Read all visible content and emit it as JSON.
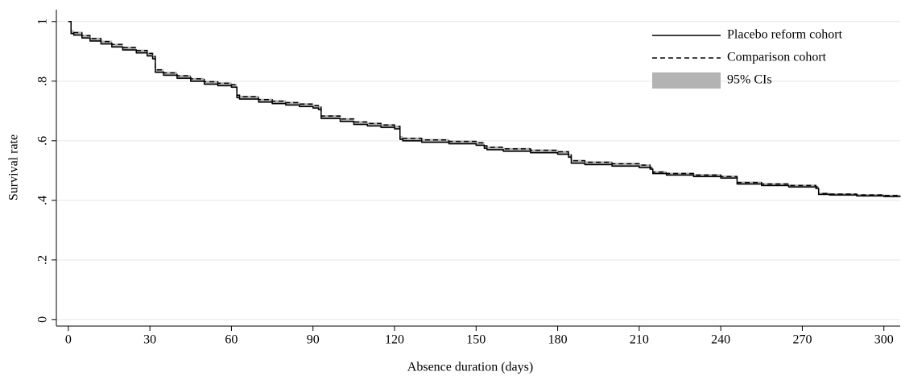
{
  "chart_data": {
    "type": "survival",
    "x_label": "Absence duration (days)",
    "y_label": "Survival rate",
    "x": [
      0,
      1,
      2,
      5,
      8,
      12,
      16,
      20,
      25,
      29,
      31,
      32,
      35,
      40,
      45,
      50,
      55,
      60,
      62,
      63,
      70,
      75,
      80,
      85,
      90,
      92,
      93,
      100,
      105,
      110,
      115,
      120,
      122,
      123,
      130,
      140,
      150,
      153,
      154,
      160,
      170,
      180,
      184,
      185,
      190,
      200,
      210,
      214,
      215,
      220,
      230,
      240,
      245,
      246,
      255,
      265,
      275,
      276,
      280,
      290,
      300,
      306
    ],
    "series": [
      {
        "name": "Placebo reform cohort",
        "color": "#000000",
        "dash": false,
        "values": [
          1,
          0.96,
          0.955,
          0.945,
          0.935,
          0.925,
          0.915,
          0.905,
          0.895,
          0.885,
          0.875,
          0.83,
          0.82,
          0.81,
          0.8,
          0.79,
          0.785,
          0.78,
          0.745,
          0.74,
          0.73,
          0.725,
          0.72,
          0.715,
          0.71,
          0.705,
          0.675,
          0.665,
          0.655,
          0.65,
          0.645,
          0.64,
          0.605,
          0.6,
          0.595,
          0.59,
          0.585,
          0.575,
          0.57,
          0.565,
          0.56,
          0.555,
          0.545,
          0.525,
          0.52,
          0.515,
          0.51,
          0.505,
          0.49,
          0.485,
          0.48,
          0.475,
          0.475,
          0.455,
          0.45,
          0.445,
          0.44,
          0.42,
          0.418,
          0.415,
          0.413,
          0.412
        ]
      },
      {
        "name": "Comparison cohort",
        "color": "#000000",
        "dash": true,
        "values": [
          1,
          0.968,
          0.963,
          0.953,
          0.943,
          0.933,
          0.923,
          0.913,
          0.903,
          0.893,
          0.883,
          0.838,
          0.828,
          0.818,
          0.808,
          0.798,
          0.793,
          0.788,
          0.753,
          0.748,
          0.738,
          0.733,
          0.728,
          0.723,
          0.718,
          0.713,
          0.683,
          0.673,
          0.663,
          0.658,
          0.653,
          0.648,
          0.613,
          0.608,
          0.603,
          0.598,
          0.593,
          0.583,
          0.578,
          0.573,
          0.568,
          0.563,
          0.553,
          0.533,
          0.528,
          0.523,
          0.518,
          0.51,
          0.495,
          0.49,
          0.485,
          0.48,
          0.48,
          0.46,
          0.455,
          0.45,
          0.445,
          0.423,
          0.421,
          0.418,
          0.416,
          0.415
        ]
      },
      {
        "name": "95% CIs",
        "color": "#b3b3b3",
        "band": true,
        "upper": [
          1,
          0.971,
          0.966,
          0.956,
          0.946,
          0.936,
          0.926,
          0.916,
          0.906,
          0.896,
          0.886,
          0.841,
          0.831,
          0.821,
          0.811,
          0.801,
          0.796,
          0.791,
          0.756,
          0.751,
          0.741,
          0.736,
          0.731,
          0.726,
          0.721,
          0.716,
          0.686,
          0.676,
          0.666,
          0.661,
          0.656,
          0.651,
          0.616,
          0.611,
          0.606,
          0.601,
          0.596,
          0.586,
          0.581,
          0.576,
          0.571,
          0.566,
          0.556,
          0.536,
          0.531,
          0.526,
          0.521,
          0.513,
          0.498,
          0.493,
          0.488,
          0.483,
          0.483,
          0.463,
          0.458,
          0.453,
          0.448,
          0.426,
          0.424,
          0.421,
          0.419,
          0.418
        ],
        "lower": [
          1,
          0.957,
          0.952,
          0.942,
          0.932,
          0.922,
          0.912,
          0.902,
          0.892,
          0.882,
          0.872,
          0.827,
          0.817,
          0.807,
          0.797,
          0.787,
          0.782,
          0.777,
          0.742,
          0.737,
          0.727,
          0.722,
          0.717,
          0.712,
          0.707,
          0.702,
          0.672,
          0.662,
          0.652,
          0.647,
          0.642,
          0.637,
          0.602,
          0.597,
          0.592,
          0.587,
          0.582,
          0.572,
          0.567,
          0.562,
          0.557,
          0.552,
          0.542,
          0.522,
          0.517,
          0.512,
          0.507,
          0.502,
          0.487,
          0.482,
          0.477,
          0.472,
          0.472,
          0.452,
          0.447,
          0.442,
          0.437,
          0.417,
          0.415,
          0.412,
          0.41,
          0.409
        ]
      }
    ],
    "xlim": [
      -4.4,
      306
    ],
    "xticks": [
      0,
      30,
      60,
      90,
      120,
      150,
      180,
      210,
      240,
      270,
      300
    ],
    "ylim": [
      -0.022,
      1.04
    ],
    "yticks": [
      0,
      {
        "value": 0.2,
        "label": ".2"
      },
      {
        "value": 0.4,
        "label": ".4"
      },
      {
        "value": 0.6,
        "label": ".6"
      },
      {
        "value": 0.8,
        "label": ".8"
      },
      1
    ],
    "grid": true,
    "legend": "top-right"
  }
}
